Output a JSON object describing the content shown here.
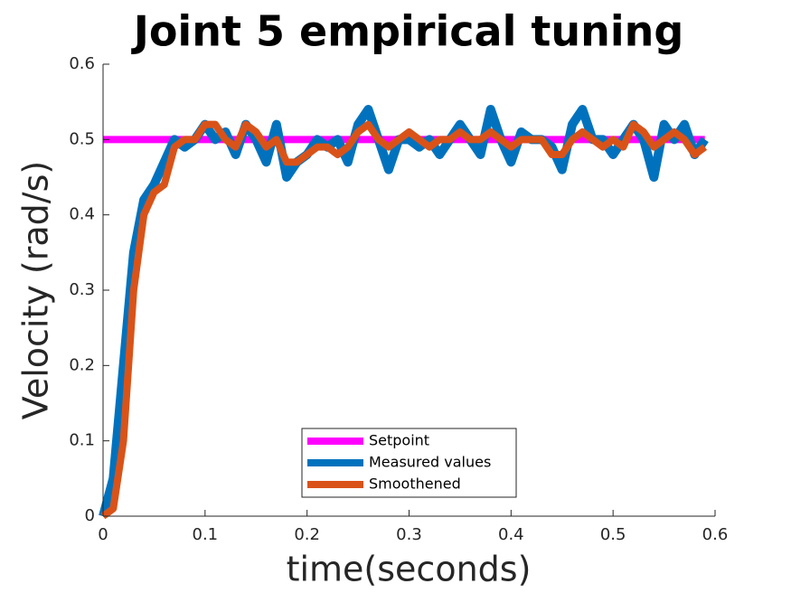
{
  "chart_data": {
    "type": "line",
    "title": "Joint 5 empirical tuning",
    "xlabel": "time(seconds)",
    "ylabel": "Velocity (rad/s)",
    "x": [
      0,
      0.01,
      0.02,
      0.03,
      0.04,
      0.05,
      0.06,
      0.07,
      0.08,
      0.09,
      0.1,
      0.11,
      0.12,
      0.13,
      0.14,
      0.15,
      0.16,
      0.17,
      0.18,
      0.19,
      0.2,
      0.21,
      0.22,
      0.23,
      0.24,
      0.25,
      0.26,
      0.27,
      0.28,
      0.29,
      0.3,
      0.31,
      0.32,
      0.33,
      0.34,
      0.35,
      0.36,
      0.37,
      0.38,
      0.39,
      0.4,
      0.41,
      0.42,
      0.43,
      0.44,
      0.45,
      0.46,
      0.47,
      0.48,
      0.49,
      0.5,
      0.51,
      0.52,
      0.53,
      0.54,
      0.55,
      0.56,
      0.57,
      0.58,
      0.59
    ],
    "series": [
      {
        "name": "Setpoint",
        "color": "#ff00ff",
        "values": [
          0.5,
          0.5,
          0.5,
          0.5,
          0.5,
          0.5,
          0.5,
          0.5,
          0.5,
          0.5,
          0.5,
          0.5,
          0.5,
          0.5,
          0.5,
          0.5,
          0.5,
          0.5,
          0.5,
          0.5,
          0.5,
          0.5,
          0.5,
          0.5,
          0.5,
          0.5,
          0.5,
          0.5,
          0.5,
          0.5,
          0.5,
          0.5,
          0.5,
          0.5,
          0.5,
          0.5,
          0.5,
          0.5,
          0.5,
          0.5,
          0.5,
          0.5,
          0.5,
          0.5,
          0.5,
          0.5,
          0.5,
          0.5,
          0.5,
          0.5,
          0.5,
          0.5,
          0.5,
          0.5,
          0.5,
          0.5,
          0.5,
          0.5,
          0.5,
          0.5
        ]
      },
      {
        "name": "Measured values",
        "color": "#0072bd",
        "values": [
          0,
          0.05,
          0.2,
          0.35,
          0.42,
          0.44,
          0.47,
          0.5,
          0.49,
          0.5,
          0.52,
          0.5,
          0.51,
          0.48,
          0.52,
          0.5,
          0.47,
          0.52,
          0.45,
          0.47,
          0.48,
          0.5,
          0.49,
          0.5,
          0.47,
          0.52,
          0.54,
          0.5,
          0.46,
          0.5,
          0.5,
          0.49,
          0.5,
          0.48,
          0.5,
          0.52,
          0.5,
          0.48,
          0.54,
          0.5,
          0.47,
          0.51,
          0.5,
          0.5,
          0.49,
          0.46,
          0.52,
          0.54,
          0.5,
          0.5,
          0.48,
          0.5,
          0.52,
          0.5,
          0.45,
          0.52,
          0.5,
          0.52,
          0.48,
          0.5
        ]
      },
      {
        "name": "Smoothened",
        "color": "#d95319",
        "values": [
          0,
          0.01,
          0.1,
          0.3,
          0.4,
          0.43,
          0.44,
          0.49,
          0.5,
          0.5,
          0.52,
          0.52,
          0.5,
          0.49,
          0.52,
          0.51,
          0.49,
          0.5,
          0.47,
          0.47,
          0.48,
          0.49,
          0.49,
          0.48,
          0.49,
          0.51,
          0.52,
          0.5,
          0.49,
          0.5,
          0.51,
          0.5,
          0.49,
          0.5,
          0.5,
          0.51,
          0.5,
          0.5,
          0.51,
          0.5,
          0.49,
          0.5,
          0.5,
          0.5,
          0.48,
          0.48,
          0.5,
          0.51,
          0.5,
          0.49,
          0.5,
          0.49,
          0.52,
          0.51,
          0.49,
          0.5,
          0.51,
          0.5,
          0.48,
          0.49
        ]
      }
    ],
    "xlim": [
      0,
      0.6
    ],
    "xticks": [
      0,
      0.1,
      0.2,
      0.3,
      0.4,
      0.5,
      0.6
    ],
    "ylim": [
      0,
      0.6
    ],
    "yticks": [
      0,
      0.1,
      0.2,
      0.3,
      0.4,
      0.5,
      0.6
    ],
    "grid": false,
    "legend": "lower center"
  }
}
